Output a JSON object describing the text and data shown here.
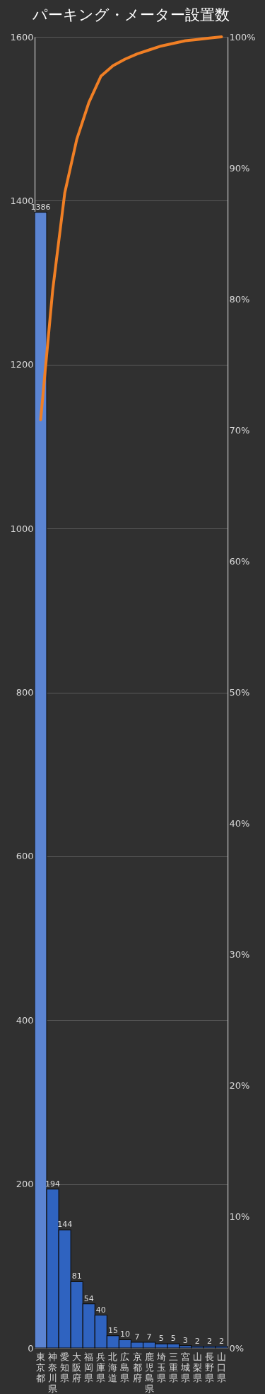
{
  "chart_data": {
    "type": "bar",
    "title": "パーキング・メーター設置数",
    "categories": [
      "東京都",
      "神奈川県",
      "愛知県",
      "大阪府",
      "福岡県",
      "兵庫県",
      "北海道",
      "広島県",
      "京都府",
      "鹿児島県",
      "埼玉県",
      "三重県",
      "宮城県",
      "山梨県",
      "長野県",
      "山口県"
    ],
    "series": [
      {
        "colors": [
          "#5b84d2",
          "#2f63c0",
          "#2f63c0",
          "#2f63c0",
          "#2f63c0",
          "#2f63c0",
          "#2f63c0",
          "#2f63c0",
          "#2f63c0",
          "#2f63c0",
          "#2f63c0",
          "#2f63c0",
          "#2f63c0",
          "#2f63c0",
          "#2f63c0",
          "#2f63c0"
        ],
        "values": [
          1386,
          194,
          144,
          81,
          54,
          40,
          15,
          10,
          7,
          7,
          5,
          5,
          3,
          2,
          2,
          2
        ],
        "value_labels": [
          "1386",
          "194",
          "144",
          "81",
          "54",
          "40",
          "15",
          "10",
          "7",
          "7",
          "5",
          "5",
          "3",
          "2",
          "2",
          "2"
        ]
      },
      {
        "type": "line",
        "axis": "y2",
        "color": "#f07f25",
        "values": [
          70.8,
          80.7,
          88.1,
          92.2,
          95.0,
          97.0,
          97.8,
          98.3,
          98.7,
          99.0,
          99.3,
          99.5,
          99.7,
          99.8,
          99.9,
          100
        ]
      }
    ],
    "ylim": [
      0,
      1600
    ],
    "yticks": [
      0,
      200,
      400,
      600,
      800,
      1000,
      1200,
      1400,
      1600
    ],
    "y2lim": [
      0,
      100
    ],
    "y2ticks": [
      {
        "value": 0,
        "label": "0%"
      },
      {
        "value": 10,
        "label": "10%"
      },
      {
        "value": 20,
        "label": "20%"
      },
      {
        "value": 30,
        "label": "30%"
      },
      {
        "value": 40,
        "label": "40%"
      },
      {
        "value": 50,
        "label": "50%"
      },
      {
        "value": 60,
        "label": "60%"
      },
      {
        "value": 70,
        "label": "70%"
      },
      {
        "value": 80,
        "label": "80%"
      },
      {
        "value": 90,
        "label": "90%"
      },
      {
        "value": 100,
        "label": "100%"
      }
    ],
    "grid": "y"
  }
}
